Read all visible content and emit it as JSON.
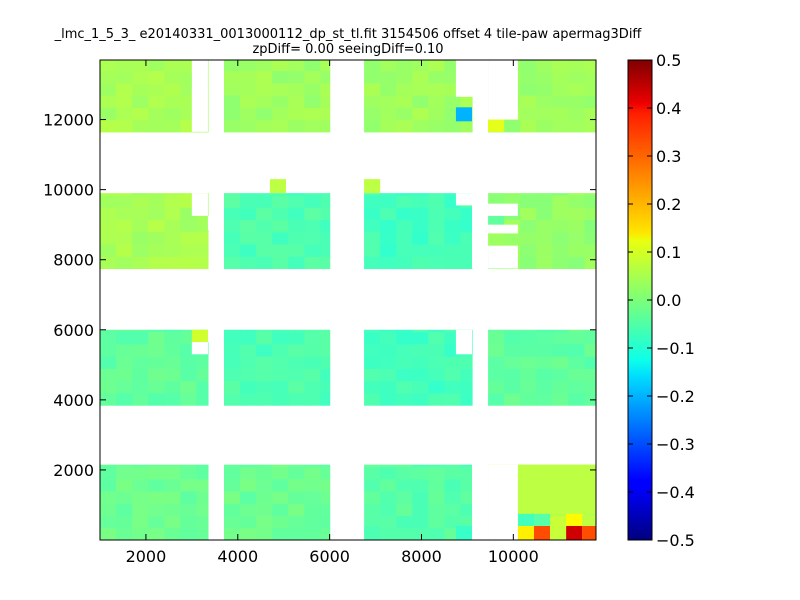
{
  "chart_data": {
    "type": "heatmap",
    "title": "_lmc_1_5_3_ e20140331_0013000112_dp_st_tl.fit 3154506 offset 4 tile-paw apermag3Diff",
    "subtitle": "zpDiff= 0.00 seeingDiff=0.10",
    "xlabel": "",
    "ylabel": "",
    "xlim": [
      1000,
      11800
    ],
    "ylim": [
      0,
      13700
    ],
    "grid": false,
    "colormap": "jet",
    "color_range": [
      -0.5,
      0.5
    ],
    "x_ticks": [
      2000,
      4000,
      6000,
      8000,
      10000
    ],
    "y_ticks": [
      2000,
      4000,
      6000,
      8000,
      10000,
      12000
    ],
    "colorbar_ticks": [
      -0.5,
      -0.4,
      -0.3,
      -0.2,
      -0.1,
      0.0,
      0.1,
      0.2,
      0.3,
      0.4,
      0.5
    ],
    "colorbar_labels": [
      "−0.5",
      "−0.4",
      "−0.3",
      "−0.2",
      "−0.1",
      "0.0",
      "0.1",
      "0.2",
      "0.3",
      "0.4",
      "0.5"
    ],
    "cell_size": 350,
    "columns": [
      {
        "x": [
          1000,
          3350
        ]
      },
      {
        "x": [
          3700,
          6000
        ]
      },
      {
        "x": [
          6750,
          9100
        ]
      },
      {
        "x": [
          9450,
          11800
        ]
      }
    ],
    "rows": [
      {
        "y": [
          0,
          2150
        ]
      },
      {
        "y": [
          3850,
          6000
        ]
      },
      {
        "y": [
          7750,
          9900
        ]
      },
      {
        "y": [
          11650,
          13700
        ]
      }
    ],
    "base_values": [
      [
        -0.02,
        -0.02,
        -0.04,
        0.06
      ],
      [
        -0.03,
        -0.05,
        -0.06,
        -0.03
      ],
      [
        0.04,
        -0.05,
        -0.06,
        0.02
      ],
      [
        0.04,
        0.03,
        0.03,
        0.03
      ]
    ],
    "cutouts": [
      {
        "x": [
          3000,
          3350
        ],
        "y": [
          11650,
          13700
        ]
      },
      {
        "x": [
          3000,
          3350
        ],
        "y": [
          9250,
          9900
        ]
      },
      {
        "x": [
          3350,
          3700
        ],
        "y": [
          8850,
          9250
        ]
      },
      {
        "x": [
          3000,
          3350
        ],
        "y": [
          5300,
          5650
        ]
      },
      {
        "x": [
          3350,
          3700
        ],
        "y": [
          5650,
          6000
        ]
      },
      {
        "x": [
          6400,
          6750
        ],
        "y": [
          0,
          1700
        ]
      },
      {
        "x": [
          9100,
          9450
        ],
        "y": [
          0,
          2150
        ]
      },
      {
        "x": [
          9450,
          10100
        ],
        "y": [
          0,
          2150
        ]
      },
      {
        "x": [
          8750,
          9100
        ],
        "y": [
          5300,
          6000
        ]
      },
      {
        "x": [
          9100,
          9450
        ],
        "y": [
          7750,
          9900
        ]
      },
      {
        "x": [
          9450,
          10100
        ],
        "y": [
          7750,
          8400
        ]
      },
      {
        "x": [
          9450,
          10100
        ],
        "y": [
          8750,
          9000
        ]
      },
      {
        "x": [
          9450,
          10100
        ],
        "y": [
          9250,
          9600
        ]
      },
      {
        "x": [
          8750,
          9100
        ],
        "y": [
          9550,
          9900
        ]
      },
      {
        "x": [
          8750,
          9100
        ],
        "y": [
          12650,
          13700
        ]
      },
      {
        "x": [
          9100,
          9450
        ],
        "y": [
          12650,
          13700
        ]
      },
      {
        "x": [
          9450,
          10100
        ],
        "y": [
          12000,
          13700
        ]
      }
    ],
    "special_cells": [
      {
        "x": [
          3000,
          3350
        ],
        "y": [
          12950,
          13300
        ],
        "value": -0.06
      },
      {
        "x": [
          3000,
          3350
        ],
        "y": [
          5650,
          6000
        ],
        "value": 0.08
      },
      {
        "x": [
          4700,
          5050
        ],
        "y": [
          9900,
          10300
        ],
        "value": 0.06
      },
      {
        "x": [
          6750,
          7100
        ],
        "y": [
          9900,
          10300
        ],
        "value": 0.06
      },
      {
        "x": [
          8750,
          9100
        ],
        "y": [
          11950,
          12350
        ],
        "value": -0.2
      },
      {
        "x": [
          9450,
          9800
        ],
        "y": [
          11650,
          12000
        ],
        "value": 0.1
      },
      {
        "x": [
          9450,
          9800
        ],
        "y": [
          7750,
          8000
        ],
        "value": -0.04
      },
      {
        "x": [
          9450,
          9800
        ],
        "y": [
          8400,
          8750
        ],
        "value": 0.03
      },
      {
        "x": [
          9450,
          9800
        ],
        "y": [
          9000,
          9250
        ],
        "value": -0.03
      },
      {
        "x": [
          6750,
          7100
        ],
        "y": [
          0,
          400
        ],
        "value": -0.05
      },
      {
        "x": [
          8750,
          9100
        ],
        "y": [
          0,
          400
        ],
        "value": -0.07
      },
      {
        "x": [
          10100,
          10450
        ],
        "y": [
          0,
          400
        ],
        "value": 0.14
      },
      {
        "x": [
          10450,
          10800
        ],
        "y": [
          0,
          400
        ],
        "value": 0.3
      },
      {
        "x": [
          10800,
          11150
        ],
        "y": [
          0,
          400
        ],
        "value": 0.07
      },
      {
        "x": [
          11150,
          11500
        ],
        "y": [
          0,
          400
        ],
        "value": 0.42
      },
      {
        "x": [
          11500,
          11800
        ],
        "y": [
          0,
          400
        ],
        "value": 0.3
      },
      {
        "x": [
          11800,
          11800
        ],
        "y": [
          0,
          400
        ],
        "value": 0.24
      },
      {
        "x": [
          10100,
          10450
        ],
        "y": [
          400,
          750
        ],
        "value": -0.06
      },
      {
        "x": [
          10450,
          10800
        ],
        "y": [
          400,
          750
        ],
        "value": -0.04
      },
      {
        "x": [
          11150,
          11500
        ],
        "y": [
          400,
          750
        ],
        "value": 0.13
      },
      {
        "x": [
          10100,
          11800
        ],
        "y": [
          750,
          2150
        ],
        "value": 0.06
      }
    ]
  }
}
